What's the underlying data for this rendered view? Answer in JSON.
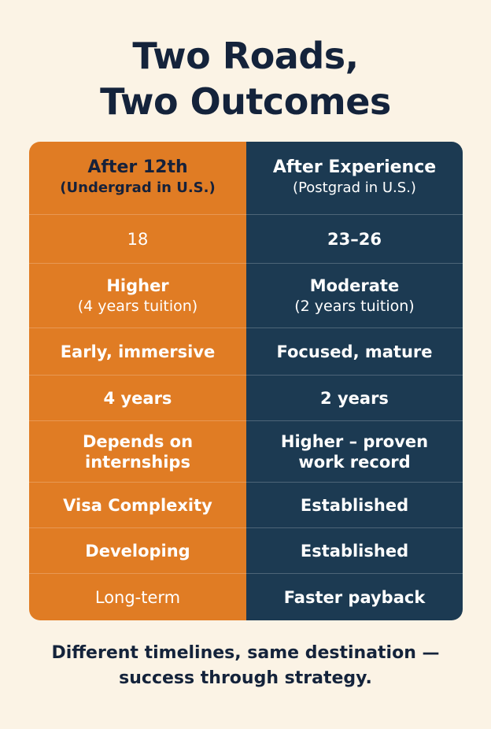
{
  "title": {
    "line1": "Two Roads,",
    "line2": "Two Outcomes"
  },
  "colors": {
    "background": "#fbf3e5",
    "left_column": "#e07c24",
    "right_column": "#1c3a52",
    "title_text": "#14233b"
  },
  "left": {
    "header_main": "After 12th",
    "header_sub": "(Undergrad in U.S.)",
    "age": "18",
    "cost_main": "Higher",
    "cost_note": "(4 years tuition)",
    "experience": "Early, immersive",
    "duration": "4 years",
    "jobs_line1": "Depends on",
    "jobs_line2": "internships",
    "visa": "Visa Complexity",
    "network": "Developing",
    "roi": "Long-term"
  },
  "right": {
    "header_main": "After Experience",
    "header_sub": "(Postgrad in U.S.)",
    "age": "23–26",
    "cost_main": "Moderate",
    "cost_note": "(2 years tuition)",
    "experience": "Focused, mature",
    "duration": "2 years",
    "jobs_line1": "Higher – proven",
    "jobs_line2": "work record",
    "visa": "Established",
    "network": "Established",
    "roi": "Faster payback"
  },
  "footer": {
    "line1": "Different timelines, same destination —",
    "line2": "success through strategy."
  }
}
